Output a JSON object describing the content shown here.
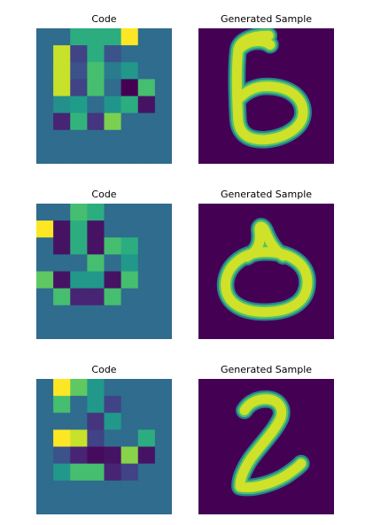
{
  "panels": [
    {
      "code_title": "Code",
      "sample_title": "Generated Sample",
      "code": [
        [
          0.35,
          0.35,
          0.62,
          0.62,
          0.62,
          1.0,
          0.35,
          0.35
        ],
        [
          0.35,
          0.92,
          0.2,
          0.62,
          0.25,
          0.35,
          0.35,
          0.35
        ],
        [
          0.35,
          0.92,
          0.25,
          0.7,
          0.42,
          0.53,
          0.35,
          0.35
        ],
        [
          0.35,
          0.92,
          0.2,
          0.7,
          0.35,
          0.0,
          0.7,
          0.35
        ],
        [
          0.35,
          0.5,
          0.55,
          0.35,
          0.52,
          0.62,
          0.05,
          0.35
        ],
        [
          0.35,
          0.1,
          0.65,
          0.15,
          0.8,
          0.35,
          0.35,
          0.35
        ],
        [
          0.35,
          0.35,
          0.35,
          0.35,
          0.35,
          0.35,
          0.35,
          0.35
        ],
        [
          0.35,
          0.35,
          0.35,
          0.35,
          0.35,
          0.35,
          0.35,
          0.35
        ]
      ],
      "digit_strokes": [
        "M 14.5 1.5 C 11 1.5 8.5 2.5 8.2 4.5 C 7.8 8 7.9 14 8.2 19 C 8.5 22 10.5 23.2 14 23 C 18 22.6 21.5 20.5 21.6 17.5 C 21.7 14.5 19 12 14 12 C 12 12 10 12.8 8.4 14.5",
        "M 8.5 4.2 C 10.5 2.2 13.5 2.4 14.8 3.4"
      ]
    },
    {
      "code_title": "Code",
      "sample_title": "Generated Sample",
      "code": [
        [
          0.35,
          0.35,
          0.7,
          0.62,
          0.35,
          0.35,
          0.35,
          0.35
        ],
        [
          1.0,
          0.05,
          0.62,
          0.05,
          0.35,
          0.35,
          0.35,
          0.35
        ],
        [
          0.35,
          0.05,
          0.62,
          0.05,
          0.7,
          0.62,
          0.35,
          0.35
        ],
        [
          0.35,
          0.35,
          0.35,
          0.7,
          0.35,
          0.53,
          0.35,
          0.35
        ],
        [
          0.75,
          0.05,
          0.53,
          0.53,
          0.05,
          0.7,
          0.35,
          0.35
        ],
        [
          0.35,
          0.7,
          0.1,
          0.1,
          0.7,
          0.35,
          0.35,
          0.35
        ],
        [
          0.35,
          0.35,
          0.35,
          0.35,
          0.35,
          0.35,
          0.35,
          0.35
        ],
        [
          0.35,
          0.35,
          0.35,
          0.35,
          0.35,
          0.35,
          0.35,
          0.35
        ]
      ],
      "digit_strokes": [
        "M 14 10 C 8.5 10 5.5 13.5 5.6 17 C 5.7 20.5 9 22.5 14 22.4 C 19.5 22.3 22.6 20 22.5 16 C 22.4 12.5 19 10 14 10 Z",
        "M 10 11 C 12 10 13 8.5 12.6 5.5 C 12.5 4.5 13.2 4.5 13.7 5.5 C 14.5 7.5 15.5 9.5 17.5 10.8"
      ]
    },
    {
      "code_title": "Code",
      "sample_title": "Generated Sample",
      "code": [
        [
          0.35,
          1.0,
          0.75,
          0.53,
          0.35,
          0.35,
          0.35,
          0.35
        ],
        [
          0.35,
          0.7,
          0.35,
          0.53,
          0.2,
          0.35,
          0.35,
          0.35
        ],
        [
          0.35,
          0.35,
          0.35,
          0.15,
          0.53,
          0.35,
          0.35,
          0.35
        ],
        [
          0.35,
          1.0,
          0.92,
          0.2,
          0.35,
          0.35,
          0.62,
          0.35
        ],
        [
          0.35,
          0.25,
          0.1,
          0.03,
          0.05,
          0.82,
          0.05,
          0.35
        ],
        [
          0.35,
          0.53,
          0.7,
          0.7,
          0.1,
          0.2,
          0.35,
          0.35
        ],
        [
          0.35,
          0.35,
          0.35,
          0.35,
          0.35,
          0.35,
          0.35,
          0.35
        ],
        [
          0.35,
          0.35,
          0.35,
          0.35,
          0.35,
          0.35,
          0.35,
          0.35
        ]
      ],
      "digit_strokes": [
        "M 9.5 6.5 C 10.5 4.8 12.5 4 14.5 4.2 C 16.5 4.5 17.6 6 17 8 C 16 10.5 13 13.5 10.8 16.5 C 9.5 18.5 8.5 20.5 8.6 22.3 C 11 22.8 15 21.8 18 20 C 19.5 19 20.5 18.3 21.2 17.5"
      ]
    }
  ]
}
